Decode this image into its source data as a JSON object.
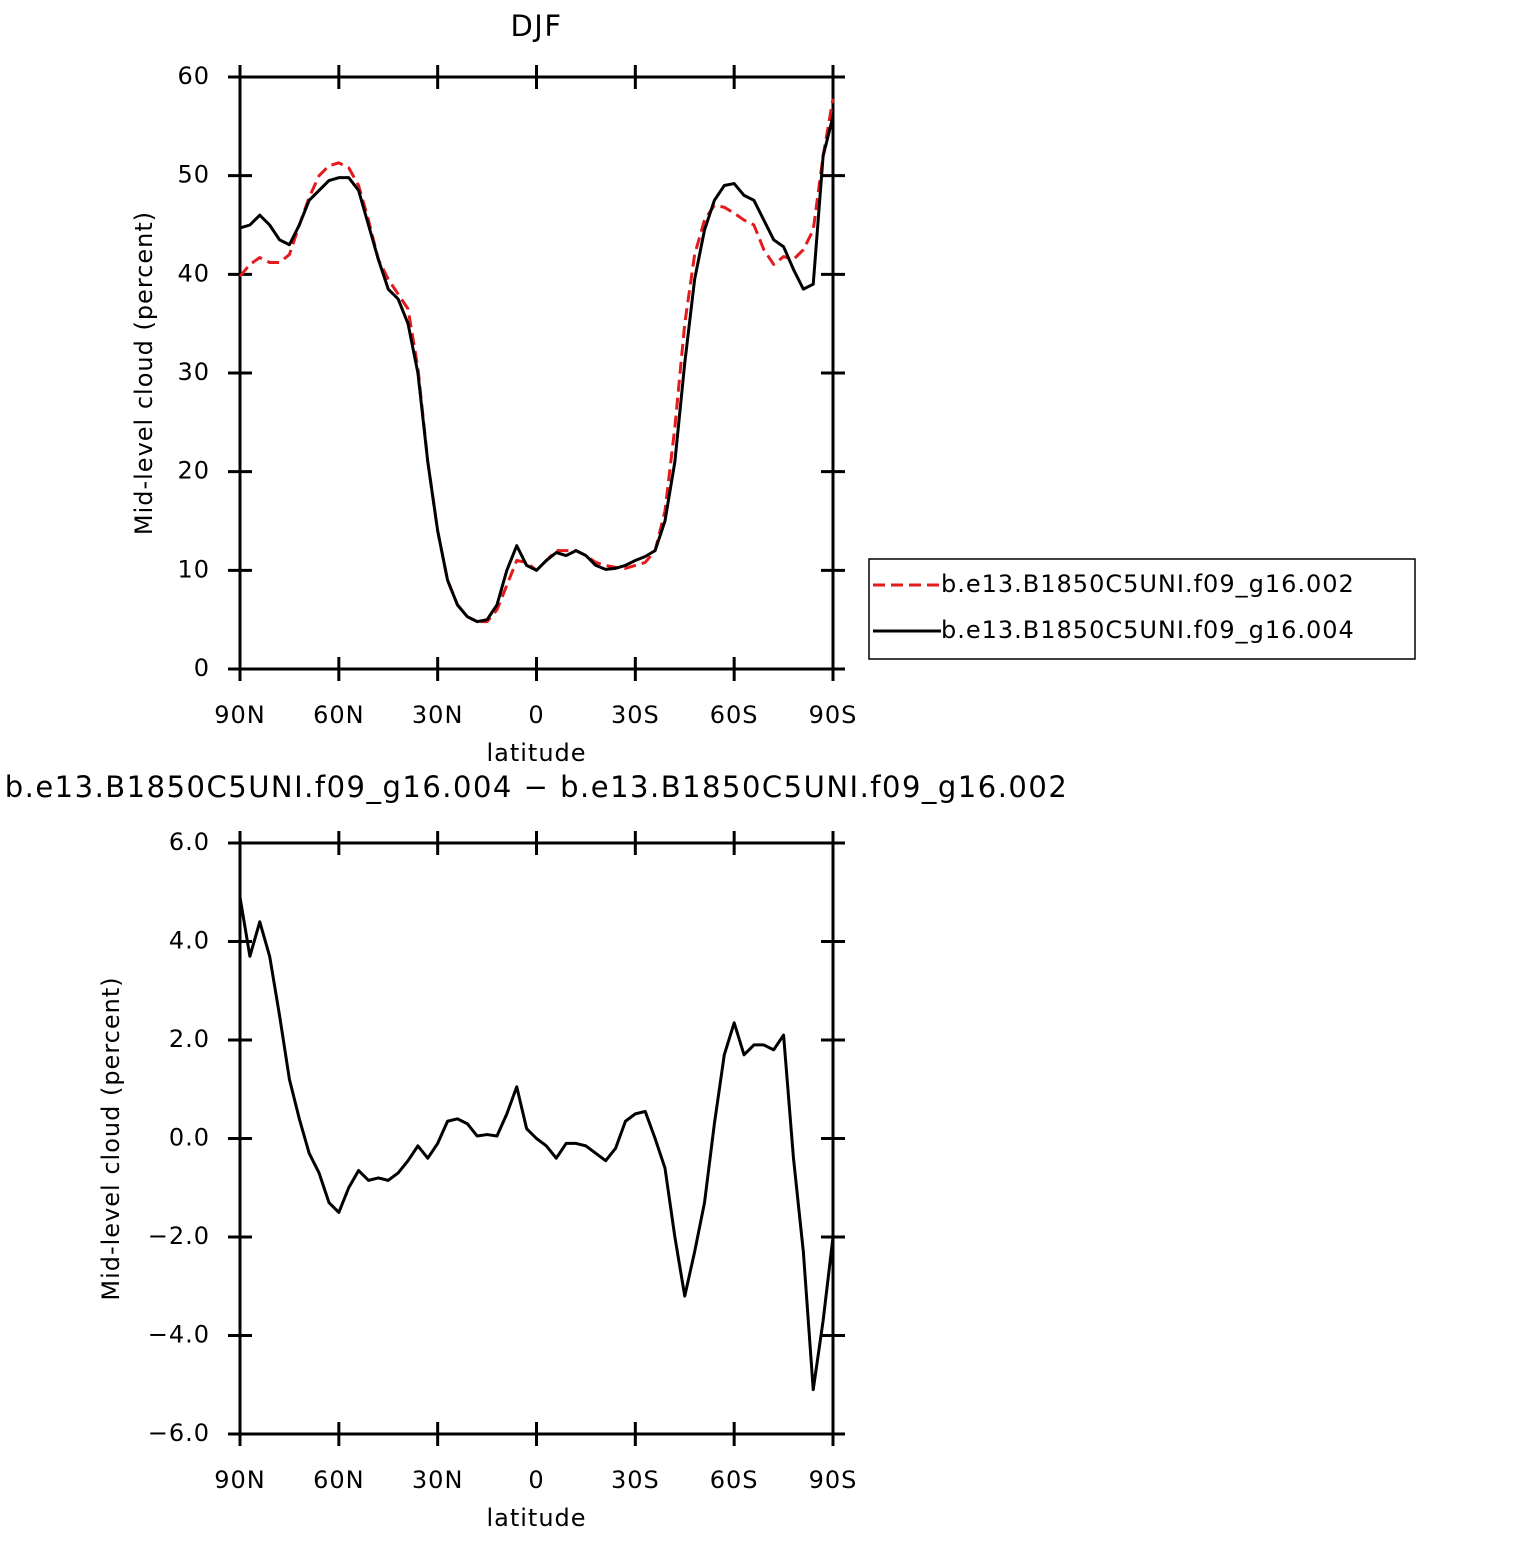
{
  "chart_data": [
    {
      "type": "line",
      "title": "DJF",
      "ylabel": "Mid-level cloud (percent)",
      "xlabel": "latitude",
      "x": [
        90,
        87,
        84,
        81,
        78,
        75,
        72,
        69,
        66,
        63,
        60,
        57,
        54,
        51,
        48,
        45,
        42,
        39,
        36,
        33,
        30,
        27,
        24,
        21,
        18,
        15,
        12,
        9,
        6,
        3,
        0,
        -3,
        -6,
        -9,
        -12,
        -15,
        -18,
        -21,
        -24,
        -27,
        -30,
        -33,
        -36,
        -39,
        -42,
        -45,
        -48,
        -51,
        -54,
        -57,
        -60,
        -63,
        -66,
        -69,
        -72,
        -75,
        -78,
        -81,
        -84,
        -87,
        -90
      ],
      "xlim": [
        90,
        -90
      ],
      "xticks": [
        {
          "value": 90,
          "label": "90N"
        },
        {
          "value": 60,
          "label": "60N"
        },
        {
          "value": 30,
          "label": "30N"
        },
        0,
        {
          "value": -30,
          "label": "30S"
        },
        {
          "value": -60,
          "label": "60S"
        },
        {
          "value": -90,
          "label": "90S"
        }
      ],
      "ylim": [
        0,
        60
      ],
      "yticks": [
        0,
        10,
        20,
        30,
        40,
        50,
        60
      ],
      "legend": "right",
      "series": [
        {
          "name": "b.e13.B1850C5UNI.f09_g16.002",
          "color": "#e41a1c",
          "line_style": "dashed",
          "values": [
            39.8,
            41,
            41.7,
            41.2,
            41.2,
            42,
            45,
            47.8,
            50,
            51,
            51.3,
            50.8,
            49,
            45.5,
            41.5,
            39.5,
            38,
            36.5,
            30.5,
            21,
            14,
            9,
            6.5,
            5.3,
            4.8,
            4.8,
            6,
            8.5,
            11,
            10.8,
            10,
            11,
            12,
            12,
            12,
            11.5,
            10.8,
            10.5,
            10.3,
            10.2,
            10.5,
            10.8,
            12,
            16,
            24.5,
            35,
            42,
            45.5,
            47,
            46.8,
            46.2,
            45.5,
            45,
            42.5,
            41,
            41.8,
            41.5,
            42.5,
            44.5,
            52,
            57.8
          ]
        },
        {
          "name": "b.e13.B1850C5UNI.f09_g16.004",
          "color": "#000000",
          "line_style": "solid",
          "values": [
            44.7,
            45,
            46,
            45,
            43.5,
            43,
            45,
            47.5,
            48.5,
            49.5,
            49.8,
            49.8,
            48.5,
            45,
            41.5,
            38.5,
            37.5,
            35,
            30,
            21,
            14,
            9,
            6.5,
            5.3,
            4.8,
            5,
            6.5,
            10,
            12.5,
            10.5,
            10,
            11,
            11.8,
            11.5,
            12,
            11.5,
            10.5,
            10.1,
            10.2,
            10.5,
            11,
            11.4,
            12,
            15,
            21,
            31,
            39.5,
            44.5,
            47.5,
            49,
            49.2,
            48,
            47.5,
            45.5,
            43.5,
            42.8,
            40.5,
            38.5,
            39,
            52,
            56
          ]
        }
      ]
    },
    {
      "type": "line",
      "title": "b.e13.B1850C5UNI.f09_g16.004 − b.e13.B1850C5UNI.f09_g16.002",
      "ylabel": "Mid-level cloud (percent)",
      "xlabel": "latitude",
      "x": [
        90,
        87,
        84,
        81,
        78,
        75,
        72,
        69,
        66,
        63,
        60,
        57,
        54,
        51,
        48,
        45,
        42,
        39,
        36,
        33,
        30,
        27,
        24,
        21,
        18,
        15,
        12,
        9,
        6,
        3,
        0,
        -3,
        -6,
        -9,
        -12,
        -15,
        -18,
        -21,
        -24,
        -27,
        -30,
        -33,
        -36,
        -39,
        -42,
        -45,
        -48,
        -51,
        -54,
        -57,
        -60,
        -63,
        -66,
        -69,
        -72,
        -75,
        -78,
        -81,
        -84,
        -87,
        -90
      ],
      "xlim": [
        90,
        -90
      ],
      "xticks": [
        {
          "value": 90,
          "label": "90N"
        },
        {
          "value": 60,
          "label": "60N"
        },
        {
          "value": 30,
          "label": "30N"
        },
        0,
        {
          "value": -30,
          "label": "30S"
        },
        {
          "value": -60,
          "label": "60S"
        },
        {
          "value": -90,
          "label": "90S"
        }
      ],
      "ylim": [
        -6,
        6
      ],
      "yticks": [
        {
          "value": -6,
          "label": "−6.0"
        },
        {
          "value": -4,
          "label": "−4.0"
        },
        {
          "value": -2,
          "label": "−2.0"
        },
        {
          "value": 0,
          "label": "0.0"
        },
        {
          "value": 2,
          "label": "2.0"
        },
        {
          "value": 4,
          "label": "4.0"
        },
        {
          "value": 6,
          "label": "6.0"
        }
      ],
      "series": [
        {
          "color": "#000000",
          "line_style": "solid",
          "values": [
            4.9,
            3.7,
            4.4,
            3.7,
            2.5,
            1.2,
            0.4,
            -0.3,
            -0.7,
            -1.3,
            -1.5,
            -1.0,
            -0.65,
            -0.85,
            -0.8,
            -0.85,
            -0.7,
            -0.45,
            -0.15,
            -0.4,
            -0.1,
            0.35,
            0.4,
            0.3,
            0.05,
            0.08,
            0.05,
            0.5,
            1.05,
            0.2,
            0.0,
            -0.15,
            -0.4,
            -0.1,
            -0.1,
            -0.15,
            -0.3,
            -0.45,
            -0.2,
            0.35,
            0.5,
            0.55,
            0.0,
            -0.6,
            -2.0,
            -3.2,
            -2.3,
            -1.3,
            0.3,
            1.7,
            2.35,
            1.7,
            1.9,
            1.9,
            1.8,
            2.1,
            -0.4,
            -2.3,
            -5.1,
            -3.7,
            -2.0
          ]
        }
      ]
    }
  ]
}
